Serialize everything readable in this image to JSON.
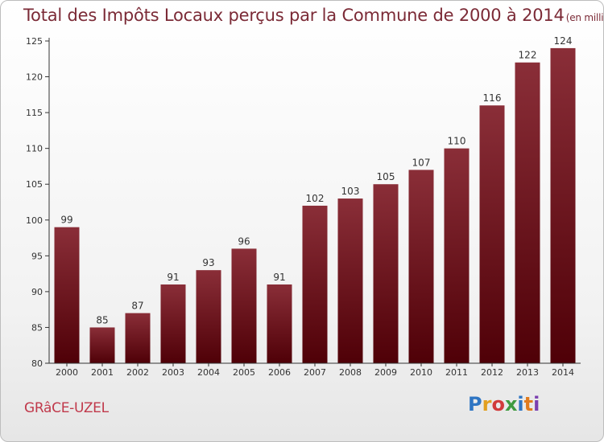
{
  "title": "Total des Impôts Locaux perçus par la Commune de 2000 à 2014",
  "title_unit": "(en milliers d'€)",
  "commune": "GRâCE-UZEL",
  "logo": {
    "letters": [
      "P",
      "r",
      "o",
      "x",
      "i",
      "t",
      "i"
    ],
    "colors": [
      "#2e75c3",
      "#e2a020",
      "#d13b3b",
      "#3f9a3f",
      "#2e75c3",
      "#e07b1f",
      "#7a3fb0"
    ]
  },
  "colors": {
    "bar_top": "#8a2e38",
    "bar_bottom": "#4f0007",
    "title": "#7b2a36",
    "commune": "#c0394b",
    "axis": "#333333"
  },
  "chart_data": {
    "type": "bar",
    "categories": [
      "2000",
      "2001",
      "2002",
      "2003",
      "2004",
      "2005",
      "2006",
      "2007",
      "2008",
      "2009",
      "2010",
      "2011",
      "2012",
      "2013",
      "2014"
    ],
    "values": [
      99,
      85,
      87,
      91,
      93,
      96,
      91,
      102,
      103,
      105,
      107,
      110,
      116,
      122,
      124
    ],
    "ylim": [
      80,
      125
    ],
    "yticks": [
      80,
      85,
      90,
      95,
      100,
      105,
      110,
      115,
      120,
      125
    ],
    "grid": false
  }
}
